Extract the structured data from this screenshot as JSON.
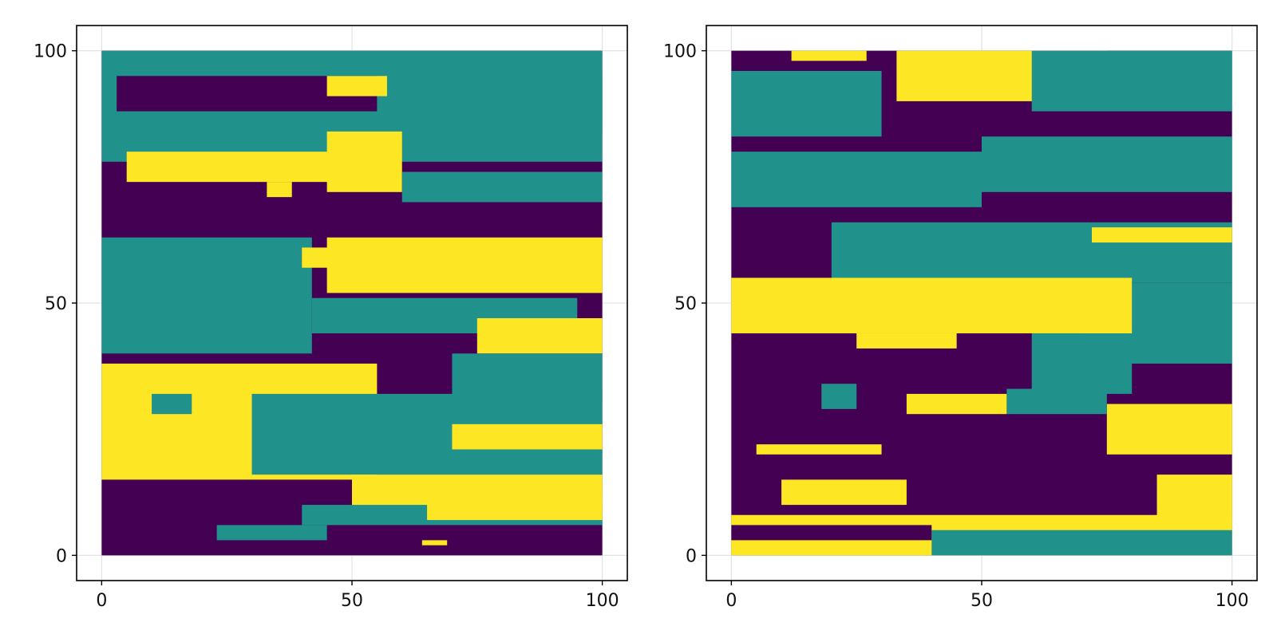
{
  "colors": {
    "background": "#ffffff",
    "low": "#440154",
    "mid": "#21918c",
    "high": "#fde725",
    "grid": "#e3e3e3",
    "frame": "#000000"
  },
  "chart_data": [
    {
      "type": "heatmap",
      "title": "",
      "xlabel": "",
      "ylabel": "",
      "xlim": [
        -5,
        105
      ],
      "ylim": [
        -5,
        105
      ],
      "x_ticks": [
        "0",
        "50",
        "100"
      ],
      "y_ticks": [
        "0",
        "50",
        "100"
      ],
      "grid": true,
      "classes": [
        "low",
        "mid",
        "high"
      ],
      "x_range": [
        0,
        100
      ],
      "y_range": [
        0,
        100
      ],
      "regions": [
        {
          "class": "low",
          "x": [
            0,
            100
          ],
          "y": [
            0,
            100
          ]
        },
        {
          "class": "mid",
          "x": [
            0,
            100
          ],
          "y": [
            78,
            100
          ]
        },
        {
          "class": "low",
          "x": [
            3,
            55
          ],
          "y": [
            88,
            95
          ]
        },
        {
          "class": "high",
          "x": [
            45,
            60
          ],
          "y": [
            72,
            84
          ]
        },
        {
          "class": "high",
          "x": [
            5,
            57
          ],
          "y": [
            74,
            80
          ]
        },
        {
          "class": "high",
          "x": [
            33,
            38
          ],
          "y": [
            71,
            74
          ]
        },
        {
          "class": "high",
          "x": [
            45,
            57
          ],
          "y": [
            91,
            95
          ]
        },
        {
          "class": "mid",
          "x": [
            60,
            100
          ],
          "y": [
            84,
            95
          ]
        },
        {
          "class": "mid",
          "x": [
            60,
            100
          ],
          "y": [
            70,
            76
          ]
        },
        {
          "class": "mid",
          "x": [
            0,
            42
          ],
          "y": [
            40,
            63
          ]
        },
        {
          "class": "mid",
          "x": [
            42,
            95
          ],
          "y": [
            44,
            51
          ]
        },
        {
          "class": "high",
          "x": [
            45,
            100
          ],
          "y": [
            52,
            63
          ]
        },
        {
          "class": "high",
          "x": [
            40,
            70
          ],
          "y": [
            57,
            61
          ]
        },
        {
          "class": "high",
          "x": [
            75,
            100
          ],
          "y": [
            40,
            47
          ]
        },
        {
          "class": "high",
          "x": [
            0,
            55
          ],
          "y": [
            15,
            38
          ]
        },
        {
          "class": "mid",
          "x": [
            10,
            18
          ],
          "y": [
            28,
            32
          ]
        },
        {
          "class": "mid",
          "x": [
            30,
            100
          ],
          "y": [
            16,
            32
          ]
        },
        {
          "class": "mid",
          "x": [
            70,
            100
          ],
          "y": [
            31,
            40
          ]
        },
        {
          "class": "high",
          "x": [
            70,
            100
          ],
          "y": [
            21,
            26
          ]
        },
        {
          "class": "high",
          "x": [
            50,
            100
          ],
          "y": [
            7,
            16
          ]
        },
        {
          "class": "mid",
          "x": [
            40,
            100
          ],
          "y": [
            6,
            10
          ]
        },
        {
          "class": "high",
          "x": [
            65,
            100
          ],
          "y": [
            7,
            12
          ]
        },
        {
          "class": "mid",
          "x": [
            23,
            45
          ],
          "y": [
            3,
            6
          ]
        },
        {
          "class": "high",
          "x": [
            64,
            69
          ],
          "y": [
            2,
            3
          ]
        }
      ]
    },
    {
      "type": "heatmap",
      "title": "",
      "xlabel": "",
      "ylabel": "",
      "xlim": [
        -5,
        105
      ],
      "ylim": [
        -5,
        105
      ],
      "x_ticks": [
        "0",
        "50",
        "100"
      ],
      "y_ticks": [
        "0",
        "50",
        "100"
      ],
      "grid": true,
      "classes": [
        "low",
        "mid",
        "high"
      ],
      "x_range": [
        0,
        100
      ],
      "y_range": [
        0,
        100
      ],
      "regions": [
        {
          "class": "low",
          "x": [
            0,
            100
          ],
          "y": [
            0,
            100
          ]
        },
        {
          "class": "high",
          "x": [
            33,
            75
          ],
          "y": [
            90,
            100
          ]
        },
        {
          "class": "high",
          "x": [
            12,
            27
          ],
          "y": [
            98,
            100
          ]
        },
        {
          "class": "mid",
          "x": [
            0,
            30
          ],
          "y": [
            83,
            96
          ]
        },
        {
          "class": "mid",
          "x": [
            60,
            100
          ],
          "y": [
            88,
            100
          ]
        },
        {
          "class": "mid",
          "x": [
            0,
            50
          ],
          "y": [
            69,
            80
          ]
        },
        {
          "class": "mid",
          "x": [
            50,
            100
          ],
          "y": [
            72,
            83
          ]
        },
        {
          "class": "mid",
          "x": [
            20,
            100
          ],
          "y": [
            54,
            66
          ]
        },
        {
          "class": "mid",
          "x": [
            70,
            100
          ],
          "y": [
            38,
            54
          ]
        },
        {
          "class": "mid",
          "x": [
            60,
            80
          ],
          "y": [
            32,
            44
          ]
        },
        {
          "class": "high",
          "x": [
            0,
            80
          ],
          "y": [
            44,
            55
          ]
        },
        {
          "class": "high",
          "x": [
            25,
            45
          ],
          "y": [
            41,
            44
          ]
        },
        {
          "class": "high",
          "x": [
            72,
            100
          ],
          "y": [
            62,
            65
          ]
        },
        {
          "class": "high",
          "x": [
            35,
            55
          ],
          "y": [
            28,
            32
          ]
        },
        {
          "class": "mid",
          "x": [
            18,
            25
          ],
          "y": [
            29,
            34
          ]
        },
        {
          "class": "high",
          "x": [
            75,
            100
          ],
          "y": [
            20,
            30
          ]
        },
        {
          "class": "mid",
          "x": [
            55,
            75
          ],
          "y": [
            28,
            33
          ]
        },
        {
          "class": "high",
          "x": [
            5,
            30
          ],
          "y": [
            20,
            22
          ]
        },
        {
          "class": "high",
          "x": [
            10,
            35
          ],
          "y": [
            10,
            15
          ]
        },
        {
          "class": "high",
          "x": [
            0,
            100
          ],
          "y": [
            0,
            8
          ]
        },
        {
          "class": "high",
          "x": [
            85,
            100
          ],
          "y": [
            6,
            16
          ]
        },
        {
          "class": "mid",
          "x": [
            40,
            100
          ],
          "y": [
            0,
            5
          ]
        },
        {
          "class": "low",
          "x": [
            0,
            40
          ],
          "y": [
            3,
            6
          ]
        }
      ]
    }
  ]
}
